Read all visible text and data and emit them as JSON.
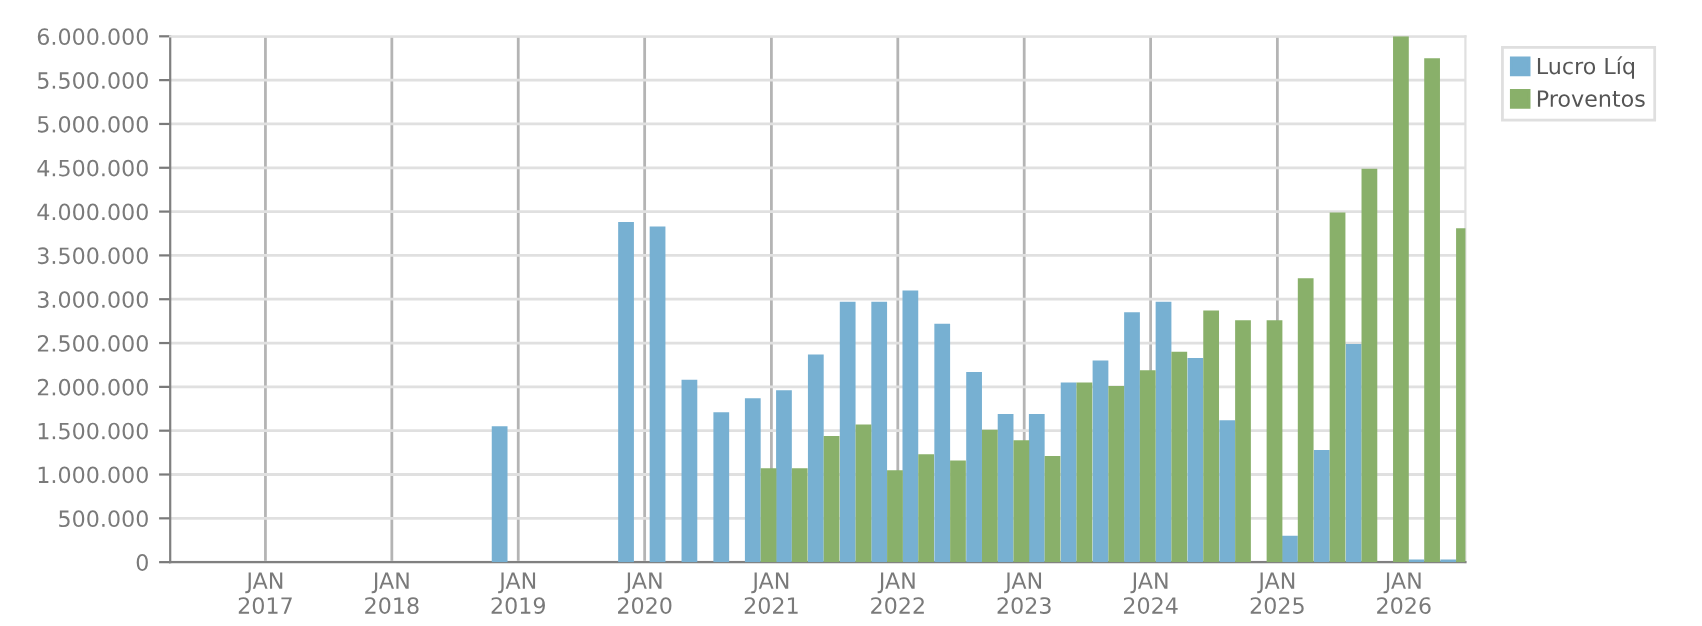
{
  "chart_data": {
    "type": "bar",
    "x": [
      "2018-12",
      "2019-03",
      "2019-06",
      "2019-09",
      "2019-12",
      "2020-03",
      "2020-06",
      "2020-09",
      "2020-12",
      "2021-03",
      "2021-06",
      "2021-09",
      "2021-12",
      "2022-03",
      "2022-06",
      "2022-09",
      "2022-12",
      "2023-03",
      "2023-06",
      "2023-09",
      "2023-12",
      "2024-03",
      "2024-06",
      "2024-09",
      "2024-12",
      "2025-03",
      "2025-06",
      "2025-09",
      "2025-12",
      "2026-03",
      "2026-06"
    ],
    "series": [
      {
        "name": "Lucro Líq",
        "color": "#77b0d2",
        "values": [
          1550000,
          null,
          null,
          null,
          3880000,
          3830000,
          2080000,
          1710000,
          1870000,
          1960000,
          2370000,
          2970000,
          2970000,
          3100000,
          2720000,
          2170000,
          1690000,
          1690000,
          2050000,
          2300000,
          2850000,
          2970000,
          2330000,
          1620000,
          null,
          300000,
          1280000,
          2490000,
          null,
          30000,
          30000
        ]
      },
      {
        "name": "Proventos",
        "color": "#89b06a",
        "values": [
          null,
          null,
          null,
          null,
          null,
          null,
          null,
          null,
          1070000,
          1070000,
          1440000,
          1570000,
          1050000,
          1230000,
          1160000,
          1510000,
          1390000,
          1210000,
          2050000,
          2010000,
          2190000,
          2400000,
          2870000,
          2760000,
          2760000,
          3240000,
          3990000,
          4490000,
          6000000,
          5750000,
          3810000
        ]
      }
    ],
    "xlim": [
      "2016-04-01",
      "2026-06-28"
    ],
    "xticks": [
      {
        "value": "2017-01",
        "label": "JAN\n2017"
      },
      {
        "value": "2018-01",
        "label": "JAN\n2018"
      },
      {
        "value": "2019-01",
        "label": "JAN\n2019"
      },
      {
        "value": "2020-01",
        "label": "JAN\n2020"
      },
      {
        "value": "2021-01",
        "label": "JAN\n2021"
      },
      {
        "value": "2022-01",
        "label": "JAN\n2022"
      },
      {
        "value": "2023-01",
        "label": "JAN\n2023"
      },
      {
        "value": "2024-01",
        "label": "JAN\n2024"
      },
      {
        "value": "2025-01",
        "label": "JAN\n2025"
      },
      {
        "value": "2026-01",
        "label": "JAN\n2026"
      }
    ],
    "ylim": [
      0,
      6000000
    ],
    "yticks": [
      {
        "value": 0,
        "label": "0"
      },
      {
        "value": 500000,
        "label": "500.000"
      },
      {
        "value": 1000000,
        "label": "1.000.000"
      },
      {
        "value": 1500000,
        "label": "1.500.000"
      },
      {
        "value": 2000000,
        "label": "2.000.000"
      },
      {
        "value": 2500000,
        "label": "2.500.000"
      },
      {
        "value": 3000000,
        "label": "3.000.000"
      },
      {
        "value": 3500000,
        "label": "3.500.000"
      },
      {
        "value": 4000000,
        "label": "4.000.000"
      },
      {
        "value": 4500000,
        "label": "4.500.000"
      },
      {
        "value": 5000000,
        "label": "5.000.000"
      },
      {
        "value": 5500000,
        "label": "5.500.000"
      },
      {
        "value": 6000000,
        "label": "6.000.000"
      }
    ],
    "grid": true,
    "legend": "top right"
  }
}
